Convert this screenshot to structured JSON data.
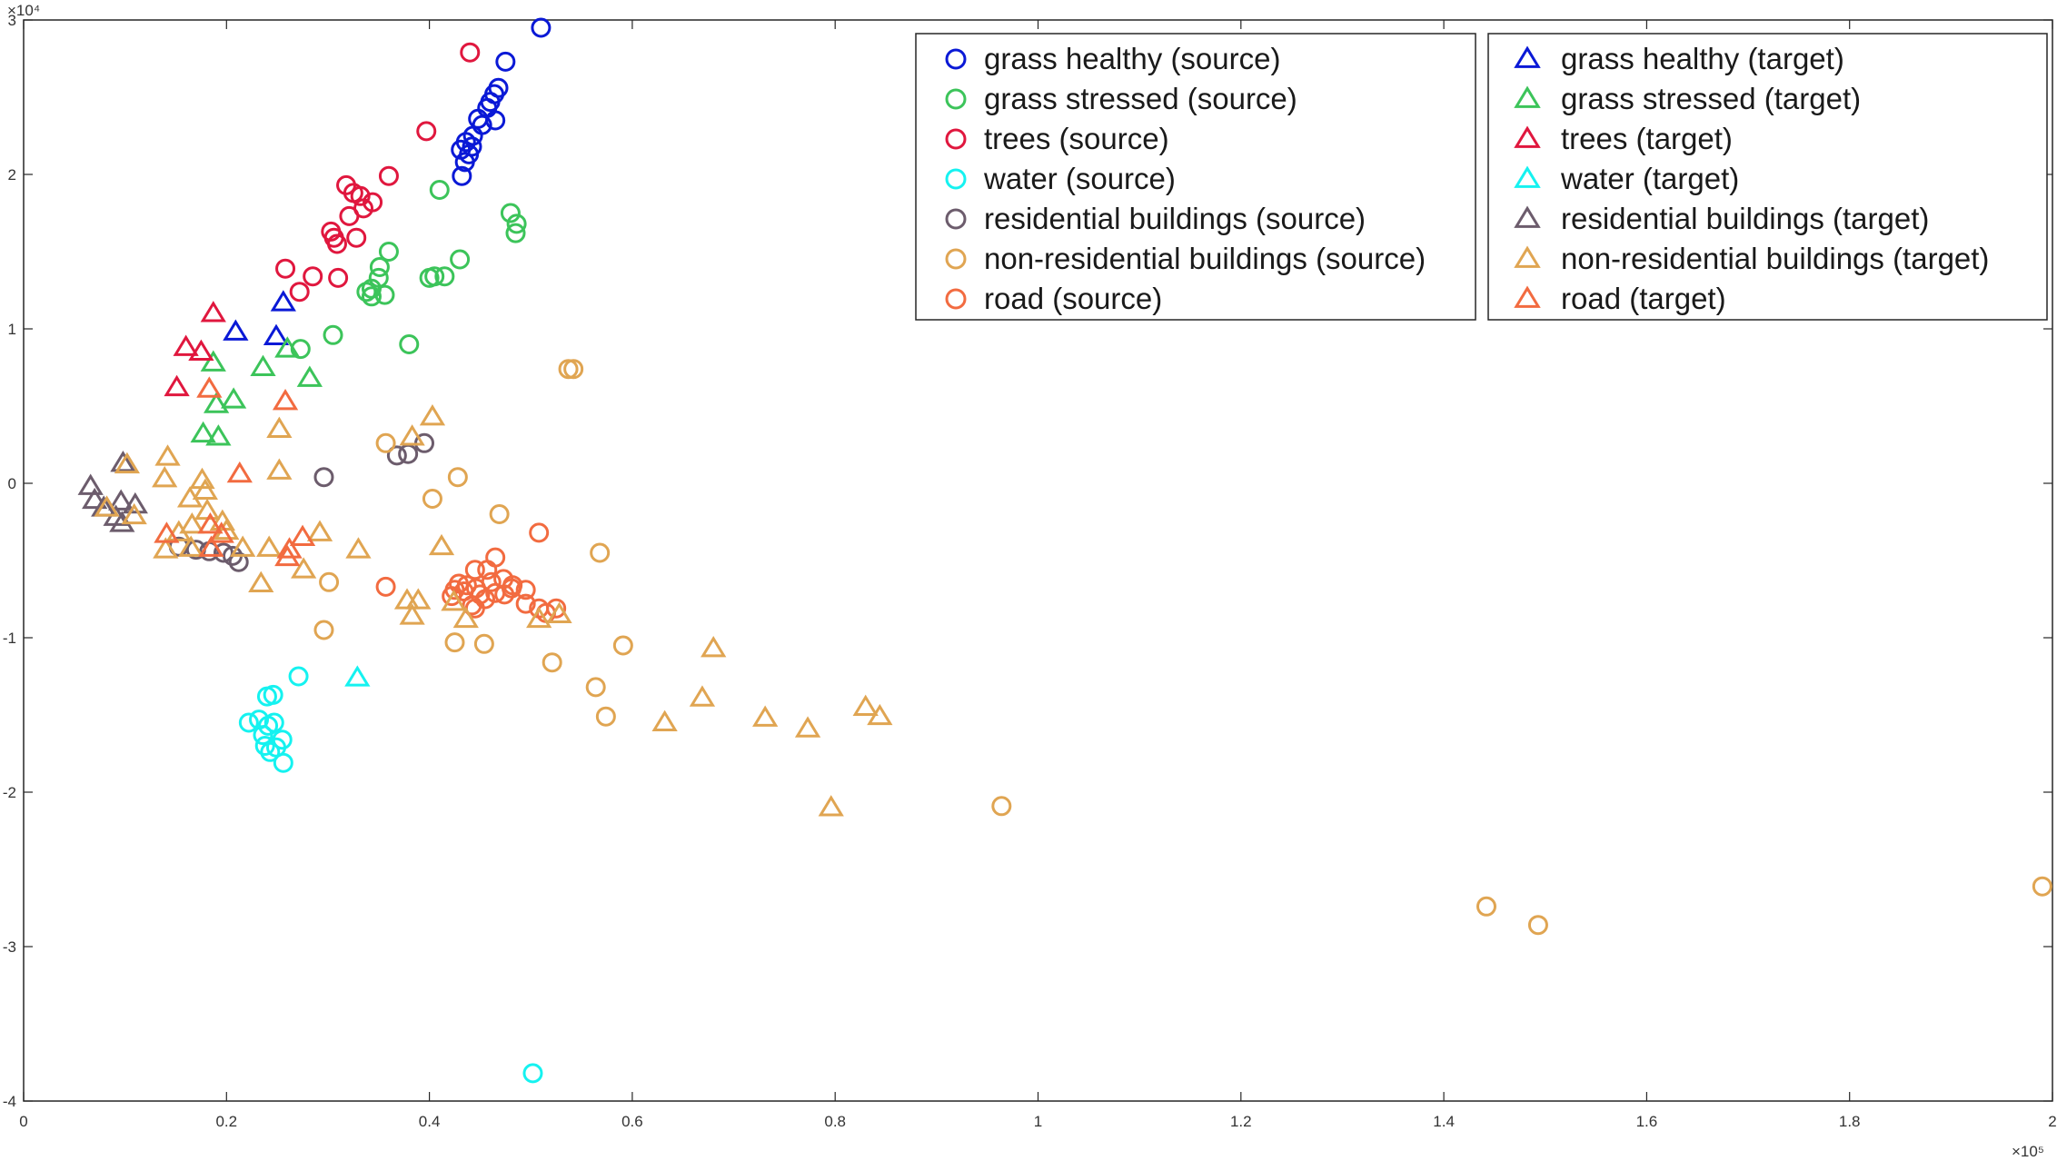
{
  "chart_data": {
    "type": "scatter",
    "title": "",
    "xlabel": "",
    "ylabel": "",
    "x_exponent_label": "×10⁵",
    "y_exponent_label": "×10⁴",
    "xlim": [
      0,
      200000
    ],
    "ylim": [
      -40000,
      30000
    ],
    "xticks": [
      0,
      20000,
      40000,
      60000,
      80000,
      100000,
      120000,
      140000,
      160000,
      180000,
      200000
    ],
    "xtick_labels": [
      "0",
      "0.2",
      "0.4",
      "0.6",
      "0.8",
      "1",
      "1.2",
      "1.4",
      "1.6",
      "1.8",
      "2"
    ],
    "yticks": [
      -40000,
      -30000,
      -20000,
      -10000,
      0,
      10000,
      20000,
      30000
    ],
    "ytick_labels": [
      "-4",
      "-3",
      "-2",
      "-1",
      "0",
      "1",
      "2",
      "3"
    ],
    "grid": false,
    "legend_placement": "top-right, two columns",
    "series": [
      {
        "name": "grass healthy (source)",
        "marker": "circle",
        "color": "#0a19d6",
        "points": [
          [
            51000,
            29500
          ],
          [
            47500,
            27300
          ],
          [
            46800,
            25600
          ],
          [
            46400,
            25200
          ],
          [
            46000,
            24700
          ],
          [
            45700,
            24300
          ],
          [
            46500,
            23500
          ],
          [
            45200,
            23200
          ],
          [
            44800,
            23600
          ],
          [
            44300,
            22500
          ],
          [
            43600,
            22100
          ],
          [
            43100,
            21600
          ],
          [
            44200,
            21800
          ],
          [
            43900,
            21300
          ],
          [
            43500,
            20800
          ],
          [
            43200,
            19900
          ]
        ]
      },
      {
        "name": "grass stressed (source)",
        "marker": "circle",
        "color": "#3cc45a",
        "points": [
          [
            41000,
            19000
          ],
          [
            48000,
            17500
          ],
          [
            48600,
            16800
          ],
          [
            48500,
            16200
          ],
          [
            36000,
            15000
          ],
          [
            43000,
            14500
          ],
          [
            35100,
            14000
          ],
          [
            35000,
            13300
          ],
          [
            34300,
            12600
          ],
          [
            40500,
            13400
          ],
          [
            41500,
            13400
          ],
          [
            40000,
            13300
          ],
          [
            33800,
            12400
          ],
          [
            34300,
            12100
          ],
          [
            35600,
            12200
          ],
          [
            30500,
            9600
          ],
          [
            27300,
            8700
          ],
          [
            38000,
            9000
          ]
        ]
      },
      {
        "name": "trees (source)",
        "marker": "circle",
        "color": "#e0173e",
        "points": [
          [
            44000,
            27900
          ],
          [
            39700,
            22800
          ],
          [
            31800,
            19300
          ],
          [
            32500,
            18800
          ],
          [
            33200,
            18600
          ],
          [
            36000,
            19900
          ],
          [
            34400,
            18200
          ],
          [
            33500,
            17800
          ],
          [
            32100,
            17300
          ],
          [
            30300,
            16300
          ],
          [
            30600,
            15900
          ],
          [
            30900,
            15500
          ],
          [
            32800,
            15900
          ],
          [
            25800,
            13900
          ],
          [
            28500,
            13400
          ],
          [
            31000,
            13300
          ],
          [
            27200,
            12400
          ]
        ]
      },
      {
        "name": "water (source)",
        "marker": "circle",
        "color": "#15f2f0",
        "points": [
          [
            24000,
            -13800
          ],
          [
            24600,
            -13700
          ],
          [
            27100,
            -12500
          ],
          [
            22200,
            -15500
          ],
          [
            23200,
            -15300
          ],
          [
            24100,
            -15700
          ],
          [
            24700,
            -15500
          ],
          [
            23600,
            -16300
          ],
          [
            25500,
            -16600
          ],
          [
            23800,
            -17000
          ],
          [
            24300,
            -17400
          ],
          [
            24900,
            -17100
          ],
          [
            25600,
            -18100
          ],
          [
            50200,
            -38200
          ]
        ]
      },
      {
        "name": "residential buildings (source)",
        "marker": "circle",
        "color": "#6c5c6c",
        "points": [
          [
            29600,
            400
          ],
          [
            36800,
            1800
          ],
          [
            37900,
            1900
          ],
          [
            39500,
            2600
          ],
          [
            15300,
            -4100
          ],
          [
            17000,
            -4300
          ],
          [
            18300,
            -4400
          ],
          [
            19700,
            -4500
          ],
          [
            20600,
            -4700
          ],
          [
            21200,
            -5100
          ]
        ]
      },
      {
        "name": "non-residential buildings (source)",
        "marker": "circle",
        "color": "#e0a552",
        "points": [
          [
            53700,
            7400
          ],
          [
            54200,
            7400
          ],
          [
            35700,
            2600
          ],
          [
            42800,
            400
          ],
          [
            40300,
            -1000
          ],
          [
            46900,
            -2000
          ],
          [
            56800,
            -4500
          ],
          [
            30100,
            -6400
          ],
          [
            29600,
            -9500
          ],
          [
            42500,
            -10300
          ],
          [
            45400,
            -10400
          ],
          [
            52100,
            -11600
          ],
          [
            59100,
            -10500
          ],
          [
            56400,
            -13200
          ],
          [
            57400,
            -15100
          ],
          [
            96400,
            -20900
          ],
          [
            144200,
            -27400
          ],
          [
            149300,
            -28600
          ],
          [
            199000,
            -26100
          ]
        ]
      },
      {
        "name": "road (source)",
        "marker": "circle",
        "color": "#f26b40",
        "points": [
          [
            50800,
            -3200
          ],
          [
            46500,
            -4800
          ],
          [
            35700,
            -6700
          ],
          [
            44500,
            -5600
          ],
          [
            45700,
            -5600
          ],
          [
            42900,
            -6500
          ],
          [
            43700,
            -6600
          ],
          [
            42500,
            -6900
          ],
          [
            42200,
            -7300
          ],
          [
            43400,
            -7000
          ],
          [
            44600,
            -6800
          ],
          [
            45000,
            -7200
          ],
          [
            46100,
            -6400
          ],
          [
            47300,
            -6200
          ],
          [
            48200,
            -6600
          ],
          [
            45500,
            -7500
          ],
          [
            46500,
            -7100
          ],
          [
            47400,
            -7200
          ],
          [
            48100,
            -6800
          ],
          [
            49500,
            -6900
          ],
          [
            44500,
            -8100
          ],
          [
            49500,
            -7800
          ],
          [
            50800,
            -8100
          ],
          [
            51500,
            -8400
          ],
          [
            52500,
            -8100
          ],
          [
            44200,
            -7900
          ]
        ]
      },
      {
        "name": "grass healthy (target)",
        "marker": "triangle",
        "color": "#0a19d6",
        "points": [
          [
            25600,
            11700
          ],
          [
            20900,
            9800
          ],
          [
            24900,
            9500
          ]
        ]
      },
      {
        "name": "grass stressed (target)",
        "marker": "triangle",
        "color": "#3cc45a",
        "points": [
          [
            18700,
            7800
          ],
          [
            23600,
            7500
          ],
          [
            28200,
            6800
          ],
          [
            26000,
            8700
          ],
          [
            20700,
            5400
          ],
          [
            19000,
            5100
          ],
          [
            17700,
            3200
          ],
          [
            19200,
            3000
          ]
        ]
      },
      {
        "name": "trees (target)",
        "marker": "triangle",
        "color": "#e0173e",
        "points": [
          [
            18700,
            11000
          ],
          [
            16000,
            8800
          ],
          [
            17500,
            8500
          ],
          [
            15100,
            6200
          ]
        ]
      },
      {
        "name": "water (target)",
        "marker": "triangle",
        "color": "#15f2f0",
        "points": [
          [
            32900,
            -12600
          ]
        ]
      },
      {
        "name": "residential buildings (target)",
        "marker": "triangle",
        "color": "#6c5c6c",
        "points": [
          [
            9800,
            1300
          ],
          [
            6600,
            -200
          ],
          [
            7000,
            -1100
          ],
          [
            7900,
            -1600
          ],
          [
            9600,
            -1200
          ],
          [
            11000,
            -1400
          ],
          [
            9100,
            -2200
          ],
          [
            9700,
            -2600
          ]
        ]
      },
      {
        "name": "non-residential buildings (target)",
        "marker": "triangle",
        "color": "#e0a552",
        "points": [
          [
            40300,
            4300
          ],
          [
            25200,
            3500
          ],
          [
            38300,
            3000
          ],
          [
            14200,
            1700
          ],
          [
            10200,
            1200
          ],
          [
            17600,
            200
          ],
          [
            13900,
            300
          ],
          [
            25200,
            800
          ],
          [
            17900,
            -500
          ],
          [
            16400,
            -1000
          ],
          [
            8200,
            -1600
          ],
          [
            10900,
            -2100
          ],
          [
            18100,
            -1800
          ],
          [
            16600,
            -2700
          ],
          [
            19600,
            -2500
          ],
          [
            15300,
            -3200
          ],
          [
            20000,
            -3100
          ],
          [
            29200,
            -3200
          ],
          [
            14000,
            -4300
          ],
          [
            16500,
            -4200
          ],
          [
            21600,
            -4200
          ],
          [
            24200,
            -4200
          ],
          [
            33000,
            -4300
          ],
          [
            23400,
            -6500
          ],
          [
            27600,
            -5600
          ],
          [
            37800,
            -7600
          ],
          [
            38900,
            -7600
          ],
          [
            38300,
            -8600
          ],
          [
            42400,
            -7700
          ],
          [
            43600,
            -8800
          ],
          [
            41200,
            -4100
          ],
          [
            52800,
            -8500
          ],
          [
            50800,
            -8800
          ],
          [
            68000,
            -10700
          ],
          [
            66900,
            -13900
          ],
          [
            63200,
            -15500
          ],
          [
            73100,
            -15200
          ],
          [
            77300,
            -15900
          ],
          [
            83000,
            -14500
          ],
          [
            84400,
            -15100
          ],
          [
            79600,
            -21000
          ]
        ]
      },
      {
        "name": "road (target)",
        "marker": "triangle",
        "color": "#f26b40",
        "points": [
          [
            18300,
            6100
          ],
          [
            25800,
            5300
          ],
          [
            21300,
            600
          ],
          [
            18400,
            -2700
          ],
          [
            19500,
            -3300
          ],
          [
            14100,
            -3300
          ],
          [
            18500,
            -4200
          ],
          [
            26200,
            -4300
          ],
          [
            26000,
            -4800
          ],
          [
            27500,
            -3500
          ]
        ]
      }
    ]
  }
}
